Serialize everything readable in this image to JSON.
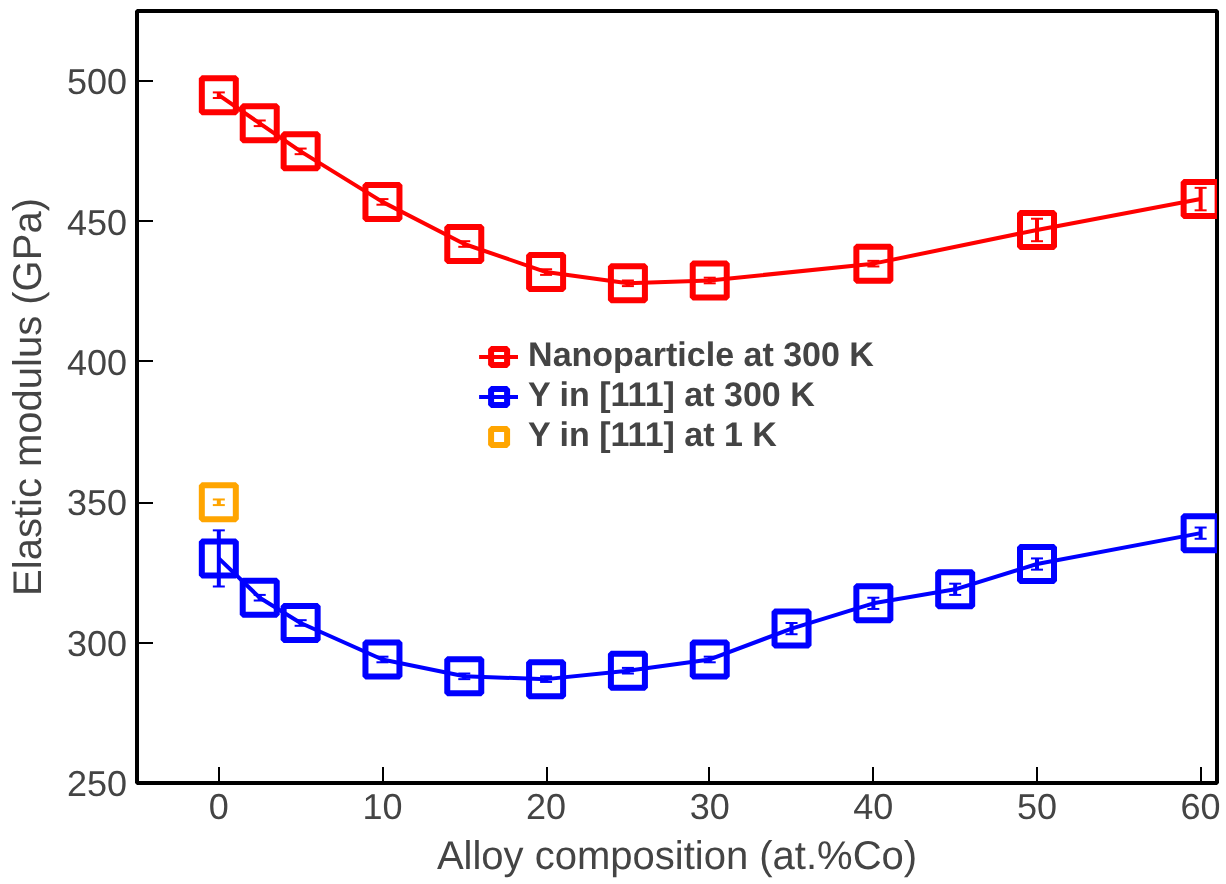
{
  "chart_data": {
    "type": "line",
    "xlabel": "Alloy composition (at.%Co)",
    "ylabel": "Elastic modulus (GPa)",
    "xlim": [
      -5,
      61
    ],
    "ylim": [
      250,
      525
    ],
    "xticks": [
      0,
      10,
      20,
      30,
      40,
      50,
      60
    ],
    "yticks": [
      250,
      300,
      350,
      400,
      450,
      500
    ],
    "marker": "square",
    "grid": false,
    "legend": "center",
    "series": [
      {
        "name": "Nanoparticle at 300 K",
        "color": "#ff0000",
        "x": [
          0,
          2.5,
          5,
          10,
          15,
          20,
          25,
          30,
          40,
          50,
          60
        ],
        "values": [
          495,
          485,
          475,
          457,
          442,
          432,
          428,
          429,
          435,
          447,
          458
        ],
        "errors": [
          1,
          1,
          1,
          1,
          1,
          1,
          1,
          1,
          1,
          4,
          4
        ]
      },
      {
        "name": "Y in [111] at 300 K",
        "color": "#0000ff",
        "x": [
          0,
          2.5,
          5,
          10,
          15,
          20,
          25,
          30,
          35,
          40,
          45,
          50,
          60
        ],
        "values": [
          330,
          316,
          307,
          294,
          288,
          287,
          290,
          294,
          305,
          314,
          319,
          328,
          339
        ],
        "errors": [
          10,
          1,
          1,
          1,
          1,
          1,
          1,
          1,
          2,
          2,
          2,
          2,
          2
        ]
      },
      {
        "name": "Y in [111] at 1 K",
        "color": "#ffa500",
        "x": [
          0
        ],
        "values": [
          350
        ],
        "errors": [
          1
        ]
      }
    ]
  }
}
